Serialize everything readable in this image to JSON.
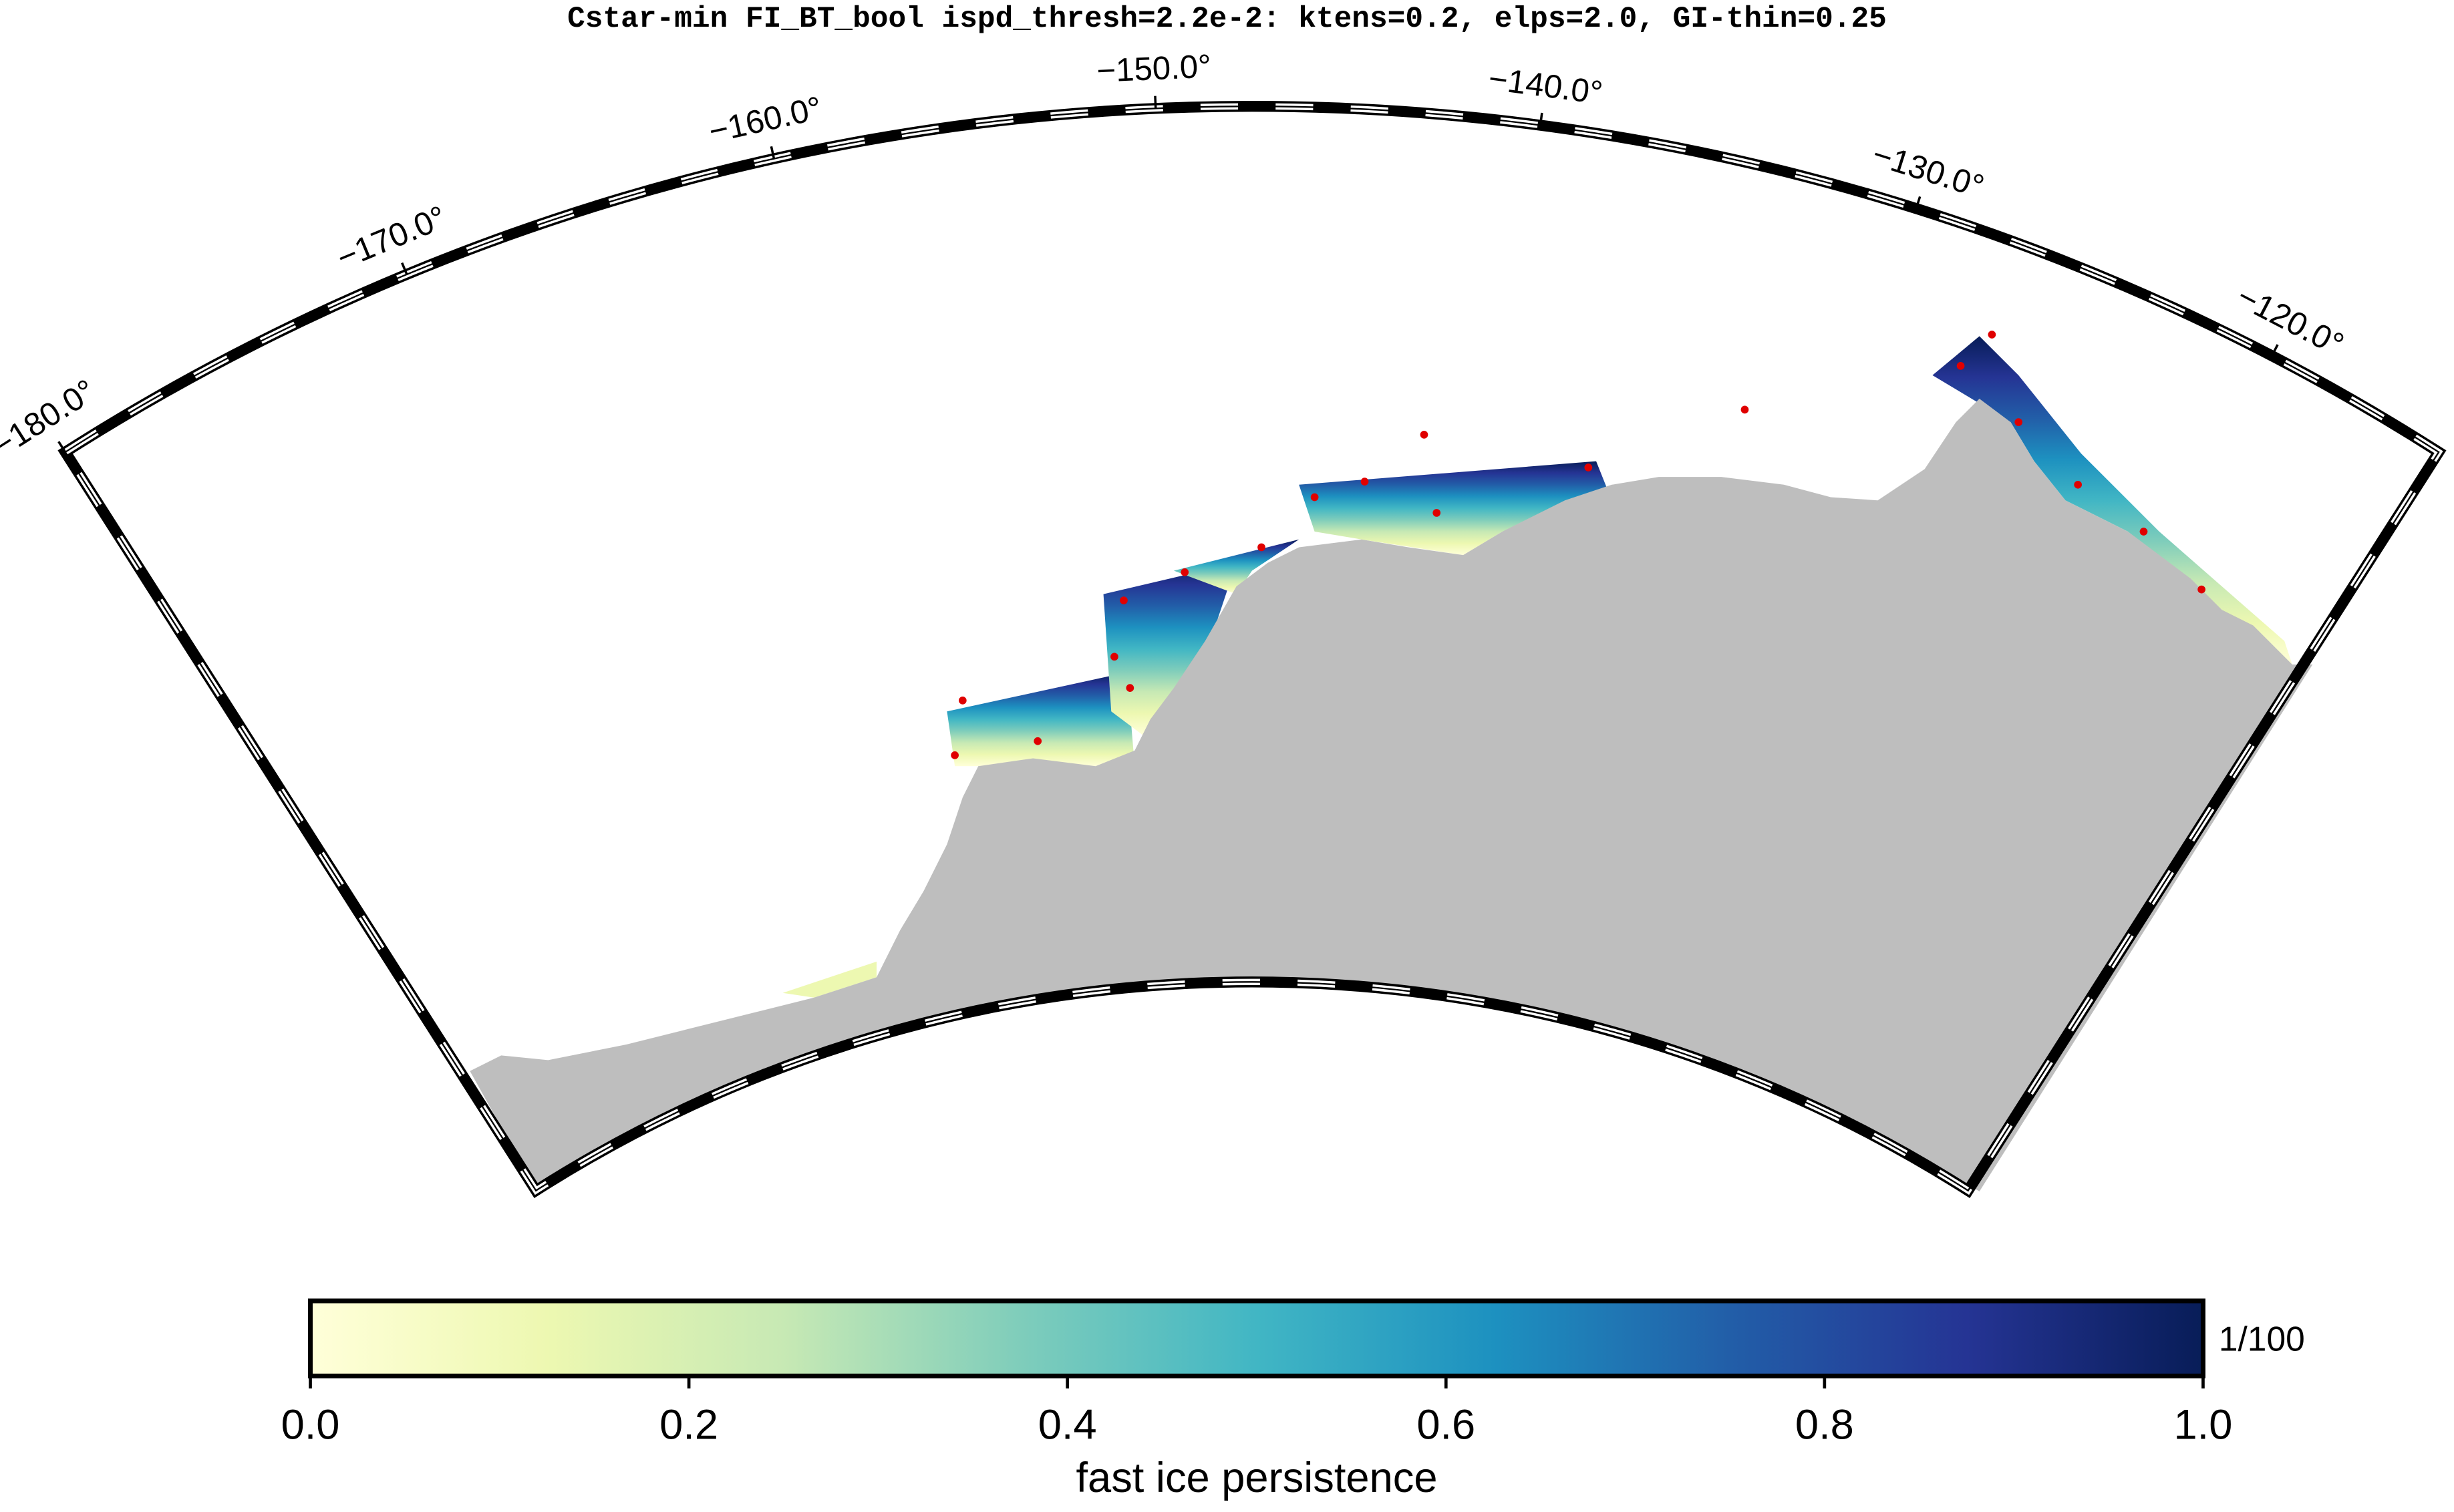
{
  "title": "Cstar-min FI_BT_bool ispd_thresh=2.2e-2: ktens=0.2, elps=2.0, GI-thin=0.25",
  "map": {
    "lonlim": [
      -180,
      -115
    ],
    "lon_ticks": [
      {
        "value": -180,
        "label": "−180.0°"
      },
      {
        "value": -170,
        "label": "−170.0°"
      },
      {
        "value": -160,
        "label": "−160.0°"
      },
      {
        "value": -150,
        "label": "−150.0°"
      },
      {
        "value": -140,
        "label": "−140.0°"
      },
      {
        "value": -130,
        "label": "−130.0°"
      },
      {
        "value": -120,
        "label": "−120.0°"
      }
    ],
    "land_color": "#bebebe"
  },
  "colorbar": {
    "label": "fast ice persistence",
    "unit": "1/100",
    "range": [
      0,
      1
    ],
    "ticks": [
      {
        "value": 0,
        "label": "0.0"
      },
      {
        "value": 0.2,
        "label": "0.2"
      },
      {
        "value": 0.4,
        "label": "0.4"
      },
      {
        "value": 0.6,
        "label": "0.6"
      },
      {
        "value": 0.8,
        "label": "0.8"
      },
      {
        "value": 1,
        "label": "1.0"
      }
    ],
    "colors": [
      "#ffffd9",
      "#edf8b1",
      "#c7e9b4",
      "#7fcdbb",
      "#41b6c4",
      "#1d91c0",
      "#225ea8",
      "#253494",
      "#081d58"
    ]
  }
}
